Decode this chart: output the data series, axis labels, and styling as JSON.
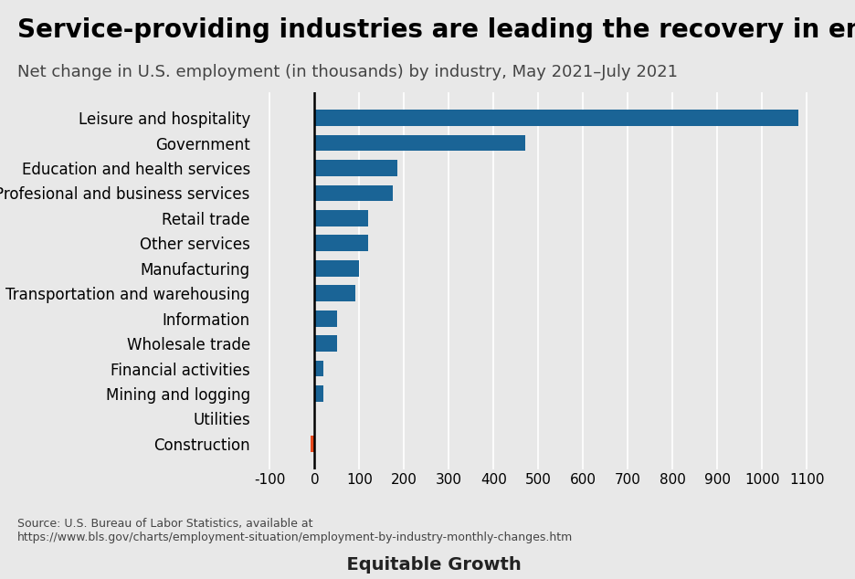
{
  "title": "Service-providing industries are leading the recovery in employment",
  "subtitle": "Net change in U.S. employment (in thousands) by industry, May 2021–July 2021",
  "categories": [
    "Leisure and hospitality",
    "Government",
    "Education and health services",
    "Profesional and business services",
    "Retail trade",
    "Other services",
    "Manufacturing",
    "Transportation and warehousing",
    "Information",
    "Wholesale trade",
    "Financial activities",
    "Mining and logging",
    "Utilities",
    "Construction"
  ],
  "values": [
    1080,
    470,
    185,
    175,
    120,
    120,
    100,
    90,
    50,
    50,
    20,
    20,
    0,
    -10
  ],
  "bar_colors": [
    "#1a6496",
    "#1a6496",
    "#1a6496",
    "#1a6496",
    "#1a6496",
    "#1a6496",
    "#1a6496",
    "#1a6496",
    "#1a6496",
    "#1a6496",
    "#1a6496",
    "#1a6496",
    "#1a6496",
    "#e8491d"
  ],
  "background_color": "#e8e8e8",
  "xlim": [
    -130,
    1150
  ],
  "xticks": [
    -100,
    0,
    100,
    200,
    300,
    400,
    500,
    600,
    700,
    800,
    900,
    1000,
    1100
  ],
  "source_text": "Source: U.S. Bureau of Labor Statistics, available at\nhttps://www.bls.gov/charts/employment-situation/employment-by-industry-monthly-changes.htm",
  "title_fontsize": 20,
  "subtitle_fontsize": 13,
  "tick_fontsize": 11,
  "label_fontsize": 12,
  "bar_height": 0.65
}
